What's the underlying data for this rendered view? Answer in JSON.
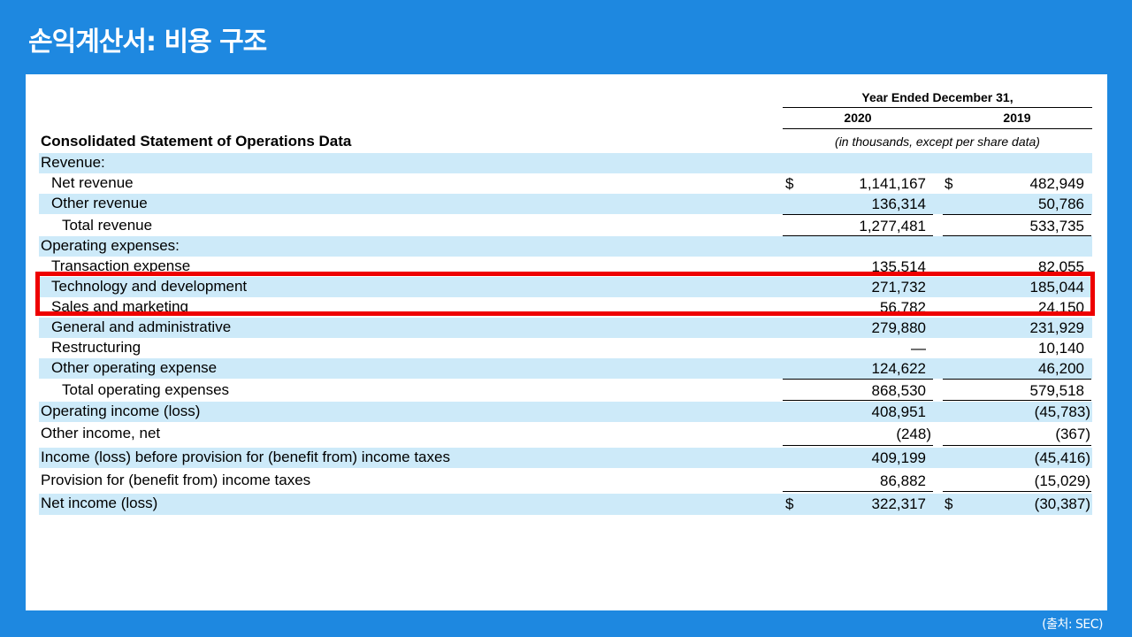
{
  "slide": {
    "title": "손익계산서: 비용 구조",
    "source": "(출처: SEC)"
  },
  "table": {
    "period_header": "Year Ended December 31,",
    "col_2020": "2020",
    "col_2019": "2019",
    "section_title": "Consolidated Statement of Operations Data",
    "units_note": "(in thousands, except per share data)",
    "rows": [
      {
        "label": "Revenue:",
        "v2020": "",
        "v2019": ""
      },
      {
        "label": "Net revenue",
        "cur2020": "$",
        "v2020": "1,141,167",
        "cur2019": "$",
        "v2019": "482,949"
      },
      {
        "label": "Other revenue",
        "v2020": "136,314",
        "v2019": "50,786"
      },
      {
        "label": "Total revenue",
        "v2020": "1,277,481",
        "v2019": "533,735"
      },
      {
        "label": "Operating expenses:",
        "v2020": "",
        "v2019": ""
      },
      {
        "label": "Transaction expense",
        "v2020": "135,514",
        "v2019": "82,055"
      },
      {
        "label": "Technology and development",
        "v2020": "271,732",
        "v2019": "185,044"
      },
      {
        "label": "Sales and marketing",
        "v2020": "56,782",
        "v2019": "24,150"
      },
      {
        "label": "General and administrative",
        "v2020": "279,880",
        "v2019": "231,929"
      },
      {
        "label": "Restructuring",
        "v2020": "—",
        "v2019": "10,140"
      },
      {
        "label": "Other operating expense",
        "v2020": "124,622",
        "v2019": "46,200"
      },
      {
        "label": "Total operating expenses",
        "v2020": "868,530",
        "v2019": "579,518"
      },
      {
        "label": "Operating income (loss)",
        "v2020": "408,951",
        "v2019": "(45,783)"
      },
      {
        "label": "Other income, net",
        "v2020": "(248)",
        "v2019": "(367)"
      },
      {
        "label": "Income (loss) before provision for (benefit from) income taxes",
        "v2020": "409,199",
        "v2019": "(45,416)"
      },
      {
        "label": "Provision for (benefit from) income taxes",
        "v2020": "86,882",
        "v2019": "(15,029)"
      },
      {
        "label": "Net income (loss)",
        "cur2020": "$",
        "v2020": "322,317",
        "cur2019": "$",
        "v2019": "(30,387)"
      }
    ]
  },
  "colors": {
    "background": "#1e88e0",
    "row_shade": "#cdeaf9",
    "highlight": "#ee0000"
  }
}
